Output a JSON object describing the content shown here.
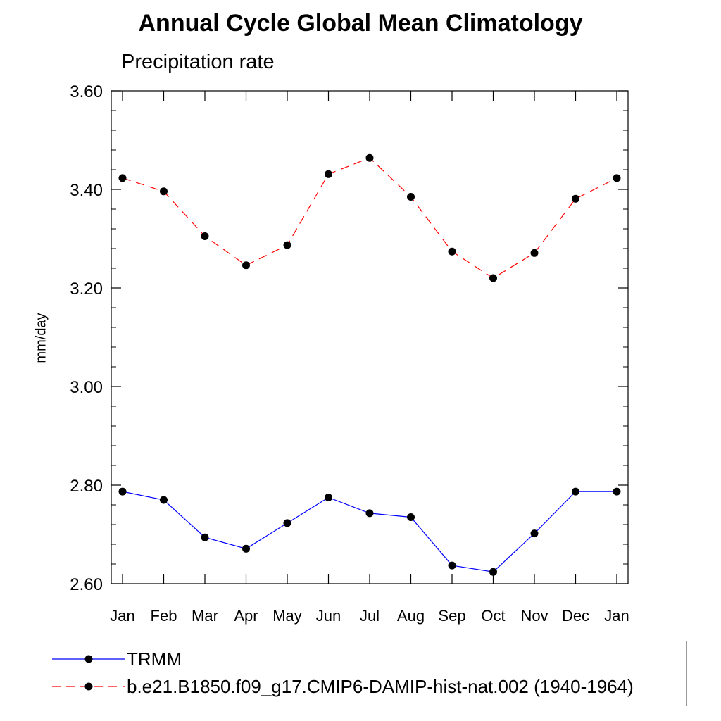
{
  "title": "Annual Cycle Global Mean Climatology",
  "subtitle": "Precipitation rate",
  "chart_data": {
    "type": "line",
    "categories": [
      "Jan",
      "Feb",
      "Mar",
      "Apr",
      "May",
      "Jun",
      "Jul",
      "Aug",
      "Sep",
      "Oct",
      "Nov",
      "Dec",
      "Jan"
    ],
    "ylabel": "mm/day",
    "xlabel": "",
    "ylim": [
      2.6,
      3.6
    ],
    "yticks": [
      "2.60",
      "2.80",
      "3.00",
      "3.20",
      "3.40",
      "3.60"
    ],
    "legend_placement": "bottom",
    "series": [
      {
        "name": "TRMM",
        "color": "#0000ff",
        "dash": "solid",
        "marker": "filled-circle",
        "values": [
          2.787,
          2.77,
          2.694,
          2.671,
          2.723,
          2.775,
          2.743,
          2.735,
          2.637,
          2.624,
          2.702,
          2.787,
          2.787
        ]
      },
      {
        "name": "b.e21.B1850.f09_g17.CMIP6-DAMIP-hist-nat.002 (1940-1964)",
        "color": "#ff0000",
        "dash": "dashed",
        "marker": "filled-circle",
        "values": [
          3.423,
          3.396,
          3.305,
          3.246,
          3.287,
          3.431,
          3.464,
          3.385,
          3.274,
          3.22,
          3.271,
          3.381,
          3.423
        ]
      }
    ]
  }
}
